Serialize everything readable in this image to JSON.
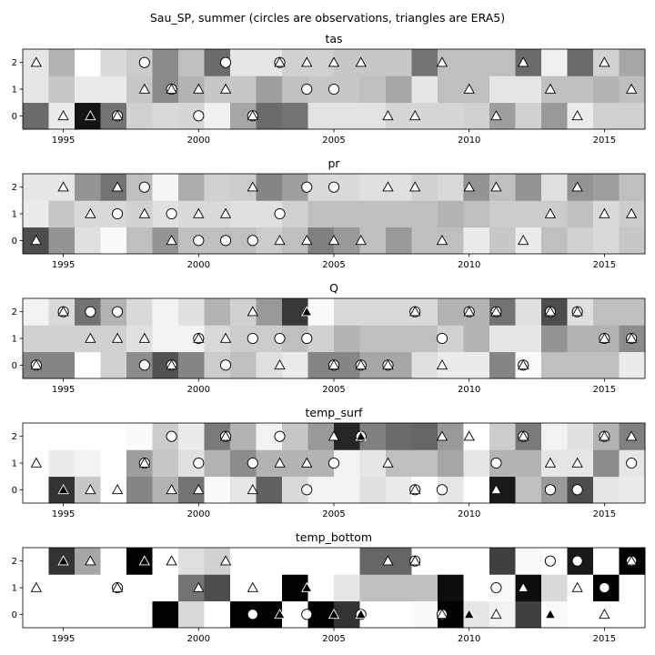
{
  "figure_title": "Sau_SP, summer (circles are observations, triangles are ERA5)",
  "chart_data": {
    "type": "heatmap",
    "x_range": [
      1993.5,
      2016.5
    ],
    "y_range": [
      -0.5,
      2.5
    ],
    "x_ticks": [
      1995,
      2000,
      2005,
      2010,
      2015
    ],
    "y_ticks": [
      0,
      1,
      2
    ],
    "markers": {
      "observations": "circle",
      "era5": "triangle",
      "filled_when_cell_dark": true
    },
    "panels": [
      {
        "title": "tas",
        "values": [
          [
            0.58,
            0.08,
            0.92,
            0.55,
            0.18,
            0.15,
            0.16,
            0.06,
            0.35,
            0.58,
            0.55,
            0.11,
            0.11,
            0.11,
            0.16,
            0.16,
            0.16,
            0.18,
            0.38,
            0.18,
            0.4,
            0.08,
            0.18,
            0.18
          ],
          [
            0.1,
            0.22,
            0.08,
            0.08,
            0.22,
            0.46,
            0.3,
            0.22,
            0.22,
            0.38,
            0.25,
            0.22,
            0.22,
            0.25,
            0.35,
            0.1,
            0.25,
            0.25,
            0.1,
            0.1,
            0.25,
            0.25,
            0.3,
            0.25
          ],
          [
            0.1,
            0.3,
            0.0,
            0.15,
            0.2,
            0.46,
            0.25,
            0.58,
            0.1,
            0.1,
            0.18,
            0.18,
            0.22,
            0.22,
            0.22,
            0.55,
            0.25,
            0.25,
            0.25,
            0.58,
            0.06,
            0.58,
            0.18,
            0.35
          ]
        ],
        "obs": [
          [
            1999,
            1
          ],
          [
            2000,
            0
          ],
          [
            2002,
            0
          ],
          [
            1998,
            2
          ],
          [
            2001,
            2
          ],
          [
            2003,
            2
          ],
          [
            2004,
            1
          ],
          [
            2005,
            1
          ],
          [
            1997,
            0
          ]
        ],
        "era5": [
          [
            1994,
            2
          ],
          [
            1995,
            0
          ],
          [
            1996,
            0
          ],
          [
            1997,
            0
          ],
          [
            1998,
            1
          ],
          [
            1999,
            1
          ],
          [
            2000,
            1
          ],
          [
            2001,
            1
          ],
          [
            2002,
            0
          ],
          [
            2003,
            2
          ],
          [
            2004,
            2
          ],
          [
            2005,
            2
          ],
          [
            2006,
            2
          ],
          [
            2007,
            0
          ],
          [
            2008,
            0
          ],
          [
            2009,
            2
          ],
          [
            2010,
            1
          ],
          [
            2011,
            0
          ],
          [
            2012,
            2
          ],
          [
            2013,
            1
          ],
          [
            2014,
            0
          ],
          [
            2015,
            2
          ],
          [
            2016,
            1
          ]
        ]
      },
      {
        "title": "pr",
        "values": [
          [
            0.7,
            0.42,
            0.12,
            0.02,
            0.25,
            0.42,
            0.25,
            0.25,
            0.25,
            0.2,
            0.25,
            0.5,
            0.4,
            0.25,
            0.4,
            0.25,
            0.25,
            0.08,
            0.22,
            0.08,
            0.25,
            0.18,
            0.15,
            0.22
          ],
          [
            0.08,
            0.22,
            0.15,
            0.15,
            0.18,
            0.12,
            0.15,
            0.15,
            0.12,
            0.12,
            0.18,
            0.25,
            0.25,
            0.25,
            0.25,
            0.25,
            0.3,
            0.25,
            0.2,
            0.2,
            0.2,
            0.25,
            0.15,
            0.2
          ],
          [
            0.1,
            0.1,
            0.42,
            0.55,
            0.25,
            0.04,
            0.32,
            0.18,
            0.2,
            0.48,
            0.38,
            0.15,
            0.15,
            0.12,
            0.12,
            0.18,
            0.15,
            0.42,
            0.25,
            0.42,
            0.12,
            0.42,
            0.38,
            0.25
          ]
        ],
        "obs": [
          [
            1997,
            1
          ],
          [
            1998,
            2
          ],
          [
            1999,
            1
          ],
          [
            2000,
            0
          ],
          [
            2001,
            0
          ],
          [
            2002,
            0
          ],
          [
            2003,
            1
          ],
          [
            2004,
            2
          ],
          [
            2005,
            2
          ]
        ],
        "era5": [
          [
            1994,
            0
          ],
          [
            1995,
            2
          ],
          [
            1996,
            1
          ],
          [
            1997,
            2
          ],
          [
            1998,
            1
          ],
          [
            1999,
            0
          ],
          [
            2000,
            1
          ],
          [
            2001,
            1
          ],
          [
            2002,
            2
          ],
          [
            2003,
            0
          ],
          [
            2004,
            0
          ],
          [
            2005,
            0
          ],
          [
            2006,
            0
          ],
          [
            2007,
            2
          ],
          [
            2008,
            2
          ],
          [
            2009,
            0
          ],
          [
            2010,
            2
          ],
          [
            2011,
            2
          ],
          [
            2012,
            0
          ],
          [
            2013,
            1
          ],
          [
            2014,
            2
          ],
          [
            2015,
            1
          ],
          [
            2016,
            1
          ]
        ]
      },
      {
        "title": "Q",
        "values": [
          [
            0.48,
            0.48,
            0.0,
            0.18,
            0.45,
            0.68,
            0.48,
            0.2,
            0.25,
            0.12,
            0.08,
            0.48,
            0.48,
            0.35,
            0.35,
            0.12,
            0.08,
            0.08,
            0.48,
            0.02,
            0.25,
            0.25,
            0.25,
            0.08
          ],
          [
            0.18,
            0.18,
            0.18,
            0.18,
            0.12,
            0.05,
            0.05,
            0.15,
            0.2,
            0.2,
            0.25,
            0.18,
            0.3,
            0.25,
            0.25,
            0.25,
            0.18,
            0.3,
            0.1,
            0.1,
            0.42,
            0.3,
            0.3,
            0.45
          ],
          [
            0.05,
            0.15,
            0.55,
            0.3,
            0.15,
            0.05,
            0.12,
            0.3,
            0.18,
            0.4,
            0.78,
            0.02,
            0.15,
            0.15,
            0.15,
            0.15,
            0.3,
            0.3,
            0.55,
            0.12,
            0.7,
            0.12,
            0.25,
            0.25
          ]
        ],
        "obs": [
          [
            1994,
            0
          ],
          [
            1995,
            2
          ],
          [
            1996,
            2
          ],
          [
            1997,
            2
          ],
          [
            1998,
            0
          ],
          [
            1999,
            0
          ],
          [
            2000,
            1
          ],
          [
            2001,
            0
          ],
          [
            2002,
            1
          ],
          [
            2003,
            1
          ],
          [
            2004,
            1
          ],
          [
            2005,
            0
          ],
          [
            2006,
            0
          ],
          [
            2007,
            0
          ],
          [
            2008,
            2
          ],
          [
            2009,
            1
          ],
          [
            2010,
            2
          ],
          [
            2011,
            2
          ],
          [
            2012,
            0
          ],
          [
            2013,
            2
          ],
          [
            2014,
            2
          ],
          [
            2015,
            1
          ],
          [
            2016,
            1
          ]
        ],
        "era5": [
          [
            1994,
            0
          ],
          [
            1995,
            2
          ],
          [
            1996,
            1
          ],
          [
            1997,
            1
          ],
          [
            1998,
            1
          ],
          [
            1999,
            0
          ],
          [
            2000,
            1
          ],
          [
            2001,
            1
          ],
          [
            2002,
            2
          ],
          [
            2003,
            0
          ],
          [
            2004,
            2
          ],
          [
            2005,
            0
          ],
          [
            2006,
            0
          ],
          [
            2007,
            0
          ],
          [
            2008,
            2
          ],
          [
            2009,
            0
          ],
          [
            2010,
            2
          ],
          [
            2011,
            2
          ],
          [
            2012,
            0
          ],
          [
            2013,
            2
          ],
          [
            2014,
            2
          ],
          [
            2015,
            1
          ],
          [
            2016,
            1
          ]
        ]
      },
      {
        "title": "temp_surf",
        "values": [
          [
            0.0,
            0.8,
            0.22,
            0.0,
            0.48,
            0.3,
            0.55,
            0.02,
            0.1,
            0.62,
            0.15,
            0.05,
            0.05,
            0.12,
            0.08,
            0.0,
            0.1,
            0.0,
            0.9,
            0.25,
            0.4,
            0.7,
            0.1,
            0.08
          ],
          [
            0.0,
            0.08,
            0.05,
            0.0,
            0.38,
            0.22,
            0.12,
            0.3,
            0.45,
            0.3,
            0.3,
            0.3,
            0.05,
            0.1,
            0.25,
            0.25,
            0.35,
            0.1,
            0.3,
            0.3,
            0.1,
            0.1,
            0.45,
            0.1
          ],
          [
            0.0,
            0.0,
            0.0,
            0.0,
            0.02,
            0.2,
            0.08,
            0.52,
            0.3,
            0.05,
            0.22,
            0.4,
            0.85,
            0.5,
            0.58,
            0.6,
            0.4,
            0.0,
            0.2,
            0.52,
            0.05,
            0.12,
            0.3,
            0.5
          ]
        ],
        "obs": [
          [
            1998,
            1
          ],
          [
            1999,
            2
          ],
          [
            2000,
            1
          ],
          [
            2001,
            2
          ],
          [
            2002,
            1
          ],
          [
            2003,
            2
          ],
          [
            2004,
            0
          ],
          [
            2005,
            1
          ],
          [
            2006,
            2
          ],
          [
            2008,
            0
          ],
          [
            2009,
            0
          ],
          [
            2011,
            1
          ],
          [
            2012,
            2
          ],
          [
            2013,
            0
          ],
          [
            2014,
            0
          ],
          [
            2015,
            2
          ],
          [
            2016,
            1
          ]
        ],
        "era5": [
          [
            1994,
            1
          ],
          [
            1995,
            0
          ],
          [
            1996,
            0
          ],
          [
            1997,
            0
          ],
          [
            1998,
            1
          ],
          [
            1999,
            0
          ],
          [
            2000,
            0
          ],
          [
            2001,
            2
          ],
          [
            2002,
            0
          ],
          [
            2003,
            1
          ],
          [
            2004,
            1
          ],
          [
            2005,
            2
          ],
          [
            2006,
            2
          ],
          [
            2007,
            1
          ],
          [
            2008,
            0
          ],
          [
            2009,
            2
          ],
          [
            2010,
            2
          ],
          [
            2011,
            0
          ],
          [
            2012,
            2
          ],
          [
            2013,
            1
          ],
          [
            2014,
            1
          ],
          [
            2015,
            2
          ],
          [
            2016,
            2
          ]
        ]
      },
      {
        "title": "temp_bottom",
        "values": [
          [
            0.0,
            0.0,
            0.0,
            0.0,
            0.0,
            1.0,
            0.15,
            0.0,
            1.0,
            1.0,
            0.0,
            1.0,
            0.8,
            0.0,
            0.0,
            0.02,
            1.0,
            0.1,
            0.05,
            0.75,
            0.02,
            0.0,
            0.0,
            0.0
          ],
          [
            0.0,
            0.0,
            0.0,
            0.0,
            0.0,
            0.0,
            0.55,
            0.7,
            0.0,
            0.0,
            1.0,
            0.0,
            0.1,
            0.25,
            0.25,
            0.25,
            0.95,
            0.0,
            0.02,
            0.95,
            0.15,
            0.0,
            1.0,
            0.0
          ],
          [
            0.0,
            0.8,
            0.35,
            0.0,
            1.0,
            0.0,
            0.12,
            0.18,
            0.0,
            0.0,
            0.0,
            0.0,
            0.0,
            0.6,
            0.6,
            0.0,
            0.0,
            0.0,
            0.75,
            0.02,
            0.0,
            0.9,
            0.0,
            1.0
          ]
        ],
        "obs": [
          [
            1997,
            1
          ],
          [
            2002,
            0
          ],
          [
            2004,
            0
          ],
          [
            2006,
            0
          ],
          [
            2008,
            2
          ],
          [
            2009,
            0
          ],
          [
            2011,
            1
          ],
          [
            2013,
            2
          ],
          [
            2014,
            2
          ],
          [
            2015,
            1
          ],
          [
            2016,
            2
          ]
        ],
        "era5": [
          [
            1994,
            1
          ],
          [
            1995,
            2
          ],
          [
            1996,
            2
          ],
          [
            1997,
            1
          ],
          [
            1998,
            2
          ],
          [
            1999,
            2
          ],
          [
            2000,
            1
          ],
          [
            2001,
            2
          ],
          [
            2002,
            1
          ],
          [
            2003,
            0
          ],
          [
            2004,
            1
          ],
          [
            2005,
            0
          ],
          [
            2006,
            0
          ],
          [
            2007,
            2
          ],
          [
            2008,
            2
          ],
          [
            2009,
            0
          ],
          [
            2010,
            0
          ],
          [
            2011,
            0
          ],
          [
            2012,
            1
          ],
          [
            2013,
            0
          ],
          [
            2014,
            1
          ],
          [
            2015,
            0
          ],
          [
            2016,
            2
          ]
        ]
      }
    ]
  }
}
